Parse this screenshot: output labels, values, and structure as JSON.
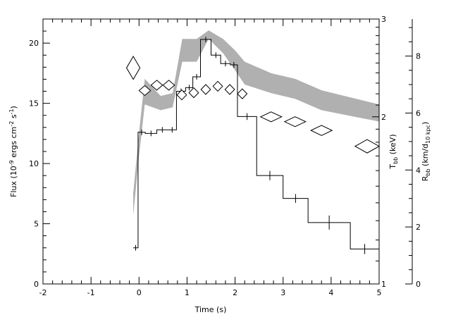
{
  "chart_data": {
    "type": "line",
    "xlabel": "Time (s)",
    "xlim": [
      -2,
      5
    ],
    "xticks": [
      "-2",
      "-1",
      "0",
      "1",
      "2",
      "3",
      "4",
      "5"
    ],
    "y_left": {
      "label_main": "Flux (10",
      "label_exp1": "-9",
      "label_mid": " ergs cm",
      "label_exp2": "-2",
      "label_mid2": " s",
      "label_exp3": "-1",
      "label_end": ")",
      "ylim": [
        0,
        22
      ],
      "ticks": [
        "0",
        "5",
        "10",
        "15",
        "20"
      ]
    },
    "y_right_inner": {
      "label_main": "T",
      "label_sub": "bb",
      "label_end": " (keV)",
      "scale": "log",
      "ylim": [
        1,
        3
      ],
      "ticks": [
        "1",
        "2",
        "3"
      ]
    },
    "y_right_outer": {
      "label_main": "R",
      "label_sub": "bb",
      "label_mid": " (km/d",
      "label_sub2": "10 kpc",
      "label_end": ")",
      "ylim": [
        0,
        9.3
      ],
      "ticks": [
        "0",
        "2",
        "4",
        "6",
        "8"
      ]
    },
    "series": [
      {
        "kind": "flux-histogram",
        "color": "#000000",
        "steps": [
          {
            "x0": -0.12,
            "x1": -0.02,
            "y": 3.0
          },
          {
            "x0": -0.02,
            "x1": 0.13,
            "y": 12.6
          },
          {
            "x0": 0.13,
            "x1": 0.37,
            "y": 12.5
          },
          {
            "x0": 0.37,
            "x1": 0.6,
            "y": 12.8
          },
          {
            "x0": 0.6,
            "x1": 0.78,
            "y": 12.8
          },
          {
            "x0": 0.78,
            "x1": 0.97,
            "y": 16.0
          },
          {
            "x0": 0.97,
            "x1": 1.12,
            "y": 16.3
          },
          {
            "x0": 1.12,
            "x1": 1.28,
            "y": 17.2
          },
          {
            "x0": 1.28,
            "x1": 1.5,
            "y": 20.3
          },
          {
            "x0": 1.5,
            "x1": 1.7,
            "y": 19.0
          },
          {
            "x0": 1.7,
            "x1": 1.9,
            "y": 18.3
          },
          {
            "x0": 1.9,
            "x1": 2.05,
            "y": 18.2
          },
          {
            "x0": 2.05,
            "x1": 2.45,
            "y": 13.9
          },
          {
            "x0": 2.45,
            "x1": 3.0,
            "y": 9.0
          },
          {
            "x0": 3.0,
            "x1": 3.52,
            "y": 7.1
          },
          {
            "x0": 3.52,
            "x1": 4.4,
            "y": 5.1
          },
          {
            "x0": 4.4,
            "x1": 5.0,
            "y": 2.9
          }
        ]
      },
      {
        "kind": "kT-diamonds",
        "axis": "y_right_inner",
        "points": [
          {
            "x": -0.12,
            "y": 2.45,
            "xerr": 0.14,
            "yerr": 0.12
          },
          {
            "x": 0.12,
            "y": 2.23,
            "xerr": 0.12,
            "yerr": 0.03
          },
          {
            "x": 0.37,
            "y": 2.28,
            "xerr": 0.12,
            "yerr": 0.04
          },
          {
            "x": 0.62,
            "y": 2.28,
            "xerr": 0.12,
            "yerr": 0.04
          },
          {
            "x": 0.89,
            "y": 2.19,
            "xerr": 0.1,
            "yerr": 0.03
          },
          {
            "x": 1.14,
            "y": 2.21,
            "xerr": 0.1,
            "yerr": 0.03
          },
          {
            "x": 1.39,
            "y": 2.24,
            "xerr": 0.1,
            "yerr": 0.03
          },
          {
            "x": 1.64,
            "y": 2.27,
            "xerr": 0.1,
            "yerr": 0.03
          },
          {
            "x": 1.89,
            "y": 2.24,
            "xerr": 0.1,
            "yerr": 0.03
          },
          {
            "x": 2.15,
            "y": 2.2,
            "xerr": 0.1,
            "yerr": 0.03
          },
          {
            "x": 2.75,
            "y": 2.0,
            "xerr": 0.22,
            "yerr": 0.03
          },
          {
            "x": 3.25,
            "y": 1.96,
            "xerr": 0.22,
            "yerr": 0.03
          },
          {
            "x": 3.8,
            "y": 1.89,
            "xerr": 0.22,
            "yerr": 0.04
          },
          {
            "x": 4.75,
            "y": 1.77,
            "xerr": 0.25,
            "yerr": 0.05
          }
        ]
      },
      {
        "kind": "Rbb-band",
        "axis": "y_right_outer",
        "color": "#b0b0b0",
        "x": [
          -0.12,
          0.0,
          0.12,
          0.45,
          0.7,
          0.9,
          1.2,
          1.45,
          1.75,
          2.0,
          2.2,
          2.75,
          3.25,
          3.8,
          5.0
        ],
        "lower": [
          2.4,
          4.5,
          6.3,
          6.1,
          6.2,
          7.8,
          7.8,
          8.6,
          8.1,
          7.5,
          7.0,
          6.7,
          6.5,
          6.1,
          5.7
        ],
        "upper": [
          3.2,
          5.3,
          7.2,
          6.6,
          6.7,
          8.6,
          8.6,
          8.9,
          8.6,
          8.2,
          7.8,
          7.4,
          7.2,
          6.8,
          6.3
        ]
      }
    ]
  }
}
